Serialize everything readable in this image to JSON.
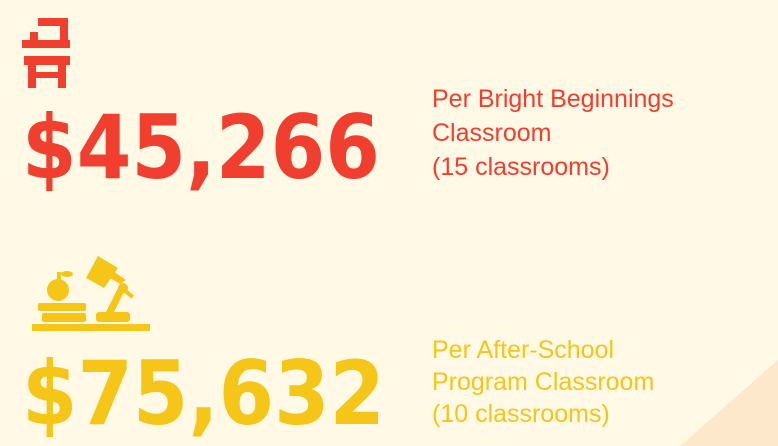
{
  "items": [
    {
      "amount": "$45,266",
      "lines": [
        "Per Bright Beginnings",
        "Classroom",
        "(15 classrooms)"
      ]
    },
    {
      "amount": "$75,632",
      "lines": [
        "Per After-School",
        "Program Classroom",
        "(10 classrooms)"
      ]
    }
  ]
}
